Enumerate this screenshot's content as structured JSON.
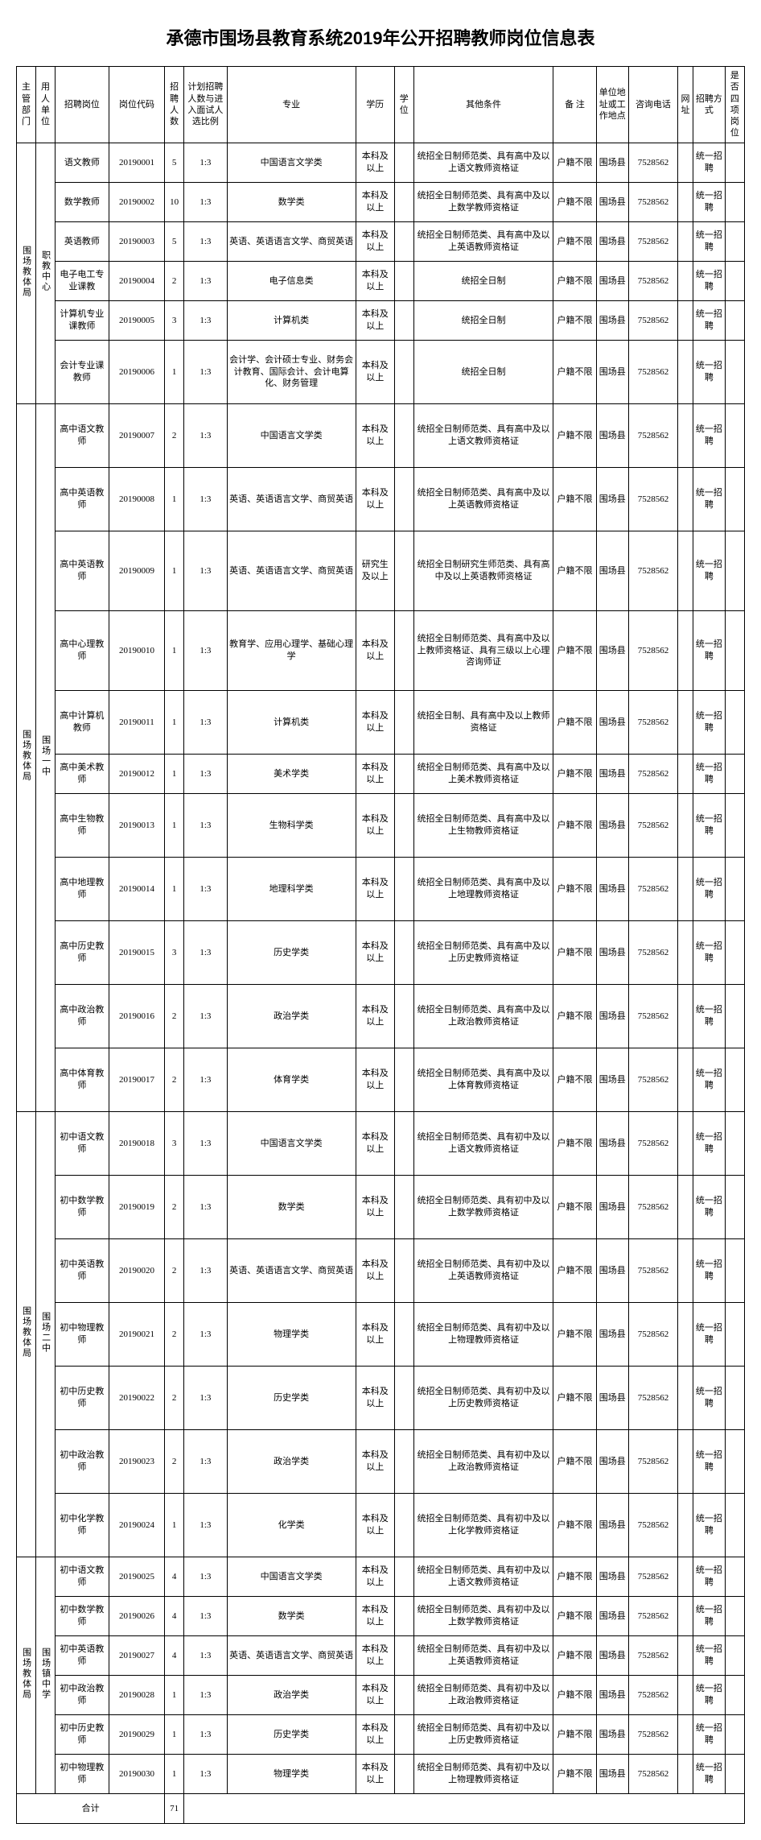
{
  "title": "承德市围场县教育系统2019年公开招聘教师岗位信息表",
  "headers": {
    "dept": "主管部门",
    "unit": "用人单位",
    "position": "招聘岗位",
    "code": "岗位代码",
    "num": "招聘人数",
    "ratio": "计划招聘人数与进入面试人选比例",
    "major": "专业",
    "edu": "学历",
    "degree": "学位",
    "other": "其他条件",
    "remark": "备 注",
    "loc": "单位地址或工作地点",
    "tel": "咨询电话",
    "url": "网址",
    "method": "招聘方式",
    "four": "是否四项岗位"
  },
  "dept_label": "围场教体局",
  "unit1": "职教中心",
  "unit2": "围场一中",
  "unit3": "围场二中",
  "unit4": "围场镇中学",
  "common": {
    "remark": "户籍不限",
    "loc": "围场县",
    "tel": "7528562",
    "method": "统一招聘",
    "edu_bk": "本科及以上",
    "edu_yjs": "研究生及以上",
    "ratio": "1:3"
  },
  "rows": [
    {
      "pos": "语文教师",
      "code": "20190001",
      "num": "5",
      "major": "中国语言文学类",
      "edu": "本科及以上",
      "other": "统招全日制师范类、具有高中及以上语文教师资格证"
    },
    {
      "pos": "数学教师",
      "code": "20190002",
      "num": "10",
      "major": "数学类",
      "edu": "本科及以上",
      "other": "统招全日制师范类、具有高中及以上数学教师资格证"
    },
    {
      "pos": "英语教师",
      "code": "20190003",
      "num": "5",
      "major": "英语、英语语言文学、商贸英语",
      "edu": "本科及以上",
      "other": "统招全日制师范类、具有高中及以上英语教师资格证"
    },
    {
      "pos": "电子电工专业课教",
      "code": "20190004",
      "num": "2",
      "major": "电子信息类",
      "edu": "本科及以上",
      "other": "统招全日制"
    },
    {
      "pos": "计算机专业课教师",
      "code": "20190005",
      "num": "3",
      "major": "计算机类",
      "edu": "本科及以上",
      "other": "统招全日制"
    },
    {
      "pos": "会计专业课教师",
      "code": "20190006",
      "num": "1",
      "major": "会计学、会计硕士专业、财务会计教育、国际会计、会计电算化、财务管理",
      "edu": "本科及以上",
      "other": "统招全日制"
    },
    {
      "pos": "高中语文教师",
      "code": "20190007",
      "num": "2",
      "major": "中国语言文学类",
      "edu": "本科及以上",
      "other": "统招全日制师范类、具有高中及以上语文教师资格证"
    },
    {
      "pos": "高中英语教师",
      "code": "20190008",
      "num": "1",
      "major": "英语、英语语言文学、商贸英语",
      "edu": "本科及以上",
      "other": "统招全日制师范类、具有高中及以上英语教师资格证"
    },
    {
      "pos": "高中英语教师",
      "code": "20190009",
      "num": "1",
      "major": "英语、英语语言文学、商贸英语",
      "edu": "研究生及以上",
      "other": "统招全日制研究生师范类、具有高中及以上英语教师资格证"
    },
    {
      "pos": "高中心理教师",
      "code": "20190010",
      "num": "1",
      "major": "教育学、应用心理学、基础心理学",
      "edu": "本科及以上",
      "other": "统招全日制师范类、具有高中及以上教师资格证、具有三级以上心理咨询师证"
    },
    {
      "pos": "高中计算机教师",
      "code": "20190011",
      "num": "1",
      "major": "计算机类",
      "edu": "本科及以上",
      "other": "统招全日制、具有高中及以上教师资格证"
    },
    {
      "pos": "高中美术教师",
      "code": "20190012",
      "num": "1",
      "major": "美术学类",
      "edu": "本科及以上",
      "other": "统招全日制师范类、具有高中及以上美术教师资格证"
    },
    {
      "pos": "高中生物教师",
      "code": "20190013",
      "num": "1",
      "major": "生物科学类",
      "edu": "本科及以上",
      "other": "统招全日制师范类、具有高中及以上生物教师资格证"
    },
    {
      "pos": "高中地理教师",
      "code": "20190014",
      "num": "1",
      "major": "地理科学类",
      "edu": "本科及以上",
      "other": "统招全日制师范类、具有高中及以上地理教师资格证"
    },
    {
      "pos": "高中历史教师",
      "code": "20190015",
      "num": "3",
      "major": "历史学类",
      "edu": "本科及以上",
      "other": "统招全日制师范类、具有高中及以上历史教师资格证"
    },
    {
      "pos": "高中政治教师",
      "code": "20190016",
      "num": "2",
      "major": "政治学类",
      "edu": "本科及以上",
      "other": "统招全日制师范类、具有高中及以上政治教师资格证"
    },
    {
      "pos": "高中体育教师",
      "code": "20190017",
      "num": "2",
      "major": "体育学类",
      "edu": "本科及以上",
      "other": "统招全日制师范类、具有高中及以上体育教师资格证"
    },
    {
      "pos": "初中语文教师",
      "code": "20190018",
      "num": "3",
      "major": "中国语言文学类",
      "edu": "本科及以上",
      "other": "统招全日制师范类、具有初中及以上语文教师资格证"
    },
    {
      "pos": "初中数学教师",
      "code": "20190019",
      "num": "2",
      "major": "数学类",
      "edu": "本科及以上",
      "other": "统招全日制师范类、具有初中及以上数学教师资格证"
    },
    {
      "pos": "初中英语教师",
      "code": "20190020",
      "num": "2",
      "major": "英语、英语语言文学、商贸英语",
      "edu": "本科及以上",
      "other": "统招全日制师范类、具有初中及以上英语教师资格证"
    },
    {
      "pos": "初中物理教师",
      "code": "20190021",
      "num": "2",
      "major": "物理学类",
      "edu": "本科及以上",
      "other": "统招全日制师范类、具有初中及以上物理教师资格证"
    },
    {
      "pos": "初中历史教师",
      "code": "20190022",
      "num": "2",
      "major": "历史学类",
      "edu": "本科及以上",
      "other": "统招全日制师范类、具有初中及以上历史教师资格证"
    },
    {
      "pos": "初中政治教师",
      "code": "20190023",
      "num": "2",
      "major": "政治学类",
      "edu": "本科及以上",
      "other": "统招全日制师范类、具有初中及以上政治教师资格证"
    },
    {
      "pos": "初中化学教师",
      "code": "20190024",
      "num": "1",
      "major": "化学类",
      "edu": "本科及以上",
      "other": "统招全日制师范类、具有初中及以上化学教师资格证"
    },
    {
      "pos": "初中语文教师",
      "code": "20190025",
      "num": "4",
      "major": "中国语言文学类",
      "edu": "本科及以上",
      "other": "统招全日制师范类、具有初中及以上语文教师资格证"
    },
    {
      "pos": "初中数学教师",
      "code": "20190026",
      "num": "4",
      "major": "数学类",
      "edu": "本科及以上",
      "other": "统招全日制师范类、具有初中及以上数学教师资格证"
    },
    {
      "pos": "初中英语教师",
      "code": "20190027",
      "num": "4",
      "major": "英语、英语语言文学、商贸英语",
      "edu": "本科及以上",
      "other": "统招全日制师范类、具有初中及以上英语教师资格证"
    },
    {
      "pos": "初中政治教师",
      "code": "20190028",
      "num": "1",
      "major": "政治学类",
      "edu": "本科及以上",
      "other": "统招全日制师范类、具有初中及以上政治教师资格证"
    },
    {
      "pos": "初中历史教师",
      "code": "20190029",
      "num": "1",
      "major": "历史学类",
      "edu": "本科及以上",
      "other": "统招全日制师范类、具有初中及以上历史教师资格证"
    },
    {
      "pos": "初中物理教师",
      "code": "20190030",
      "num": "1",
      "major": "物理学类",
      "edu": "本科及以上",
      "other": "统招全日制师范类、具有初中及以上物理教师资格证"
    }
  ],
  "total_label": "合计",
  "total_num": "71"
}
